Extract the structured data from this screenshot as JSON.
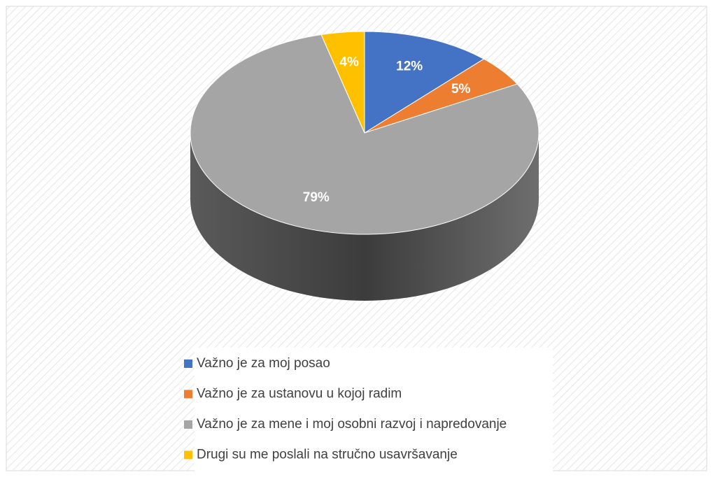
{
  "chart_data": {
    "type": "pie",
    "categories": [
      "Važno je za moj posao",
      "Važno je za ustanovu u kojoj radim",
      "Važno je za mene i moj osobni razvoj i napredovanje",
      "Drugi su me poslali na stručno usavršavanje"
    ],
    "values": [
      12,
      5,
      79,
      4
    ],
    "value_labels": [
      "12%",
      "5%",
      "79%",
      "4%"
    ],
    "colors": [
      "#4472c4",
      "#ed7d31",
      "#a5a5a5",
      "#ffc000"
    ],
    "legend": "bottom"
  }
}
